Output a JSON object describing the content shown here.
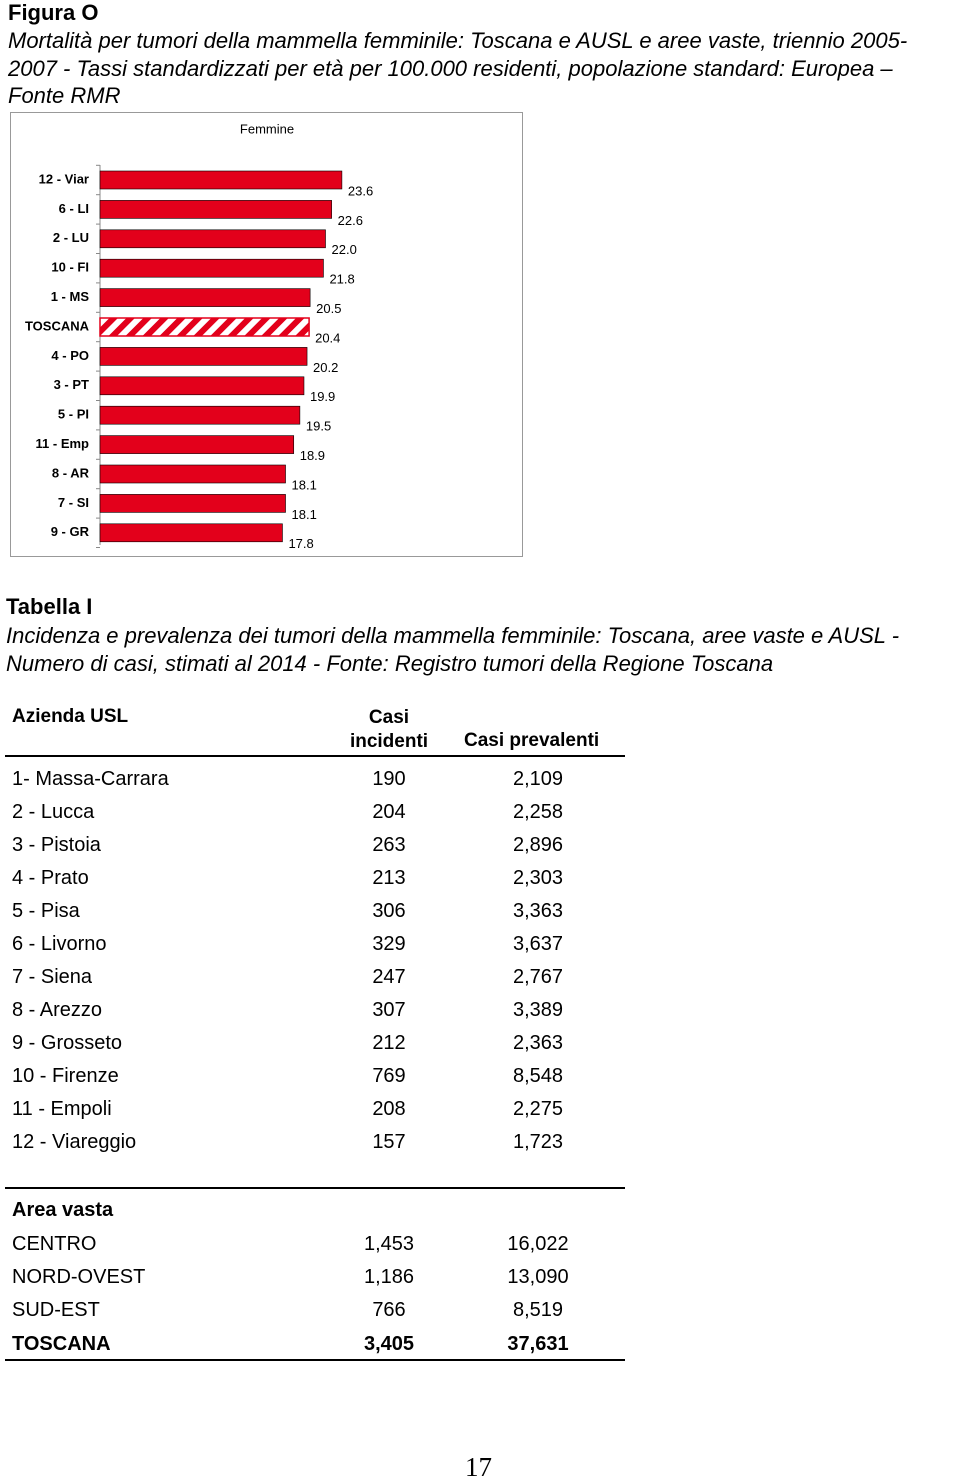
{
  "figure": {
    "label": "Figura O",
    "caption": "Mortalità per tumori della mammella femminile: Toscana e  AUSL e aree vaste, triennio 2005-2007 - Tassi standardizzati per età per 100.000 residenti, popolazione standard: Europea – Fonte RMR"
  },
  "chart_data": {
    "type": "bar",
    "orientation": "horizontal",
    "title": "Femmine",
    "categories": [
      "12 - Viar",
      "6 - LI",
      "2 - LU",
      "10 - FI",
      "1 - MS",
      "TOSCANA",
      "4 - PO",
      "3 - PT",
      "5 - PI",
      "11 - Emp",
      "8 - AR",
      "7 - SI",
      "9 - GR"
    ],
    "values": [
      23.6,
      22.6,
      22.0,
      21.8,
      20.5,
      20.4,
      20.2,
      19.9,
      19.5,
      18.9,
      18.1,
      18.1,
      17.8
    ],
    "value_labels": [
      "23.6",
      "22.6",
      "22.0",
      "21.8",
      "20.5",
      "20.4",
      "20.2",
      "19.9",
      "19.5",
      "18.9",
      "18.1",
      "18.1",
      "17.8"
    ],
    "color": "#e3001b",
    "bar_styles": [
      "solid",
      "solid",
      "solid",
      "solid",
      "solid",
      "hatched",
      "solid",
      "solid",
      "solid",
      "solid",
      "solid",
      "solid",
      "solid"
    ]
  },
  "table_section": {
    "label": "Tabella I",
    "caption": "Incidenza e prevalenza dei tumori della mammella femminile: Toscana, aree vaste e AUSL - Numero di casi,  stimati al 2014 - Fonte: Registro tumori della Regione Toscana",
    "header": [
      "Azienda USL",
      "Casi incidenti",
      "Casi prevalenti"
    ],
    "rows": [
      [
        "1- Massa-Carrara",
        "190",
        "2,109"
      ],
      [
        "2 - Lucca",
        "204",
        "2,258"
      ],
      [
        "3 - Pistoia",
        "263",
        "2,896"
      ],
      [
        "4 - Prato",
        "213",
        "2,303"
      ],
      [
        "5 - Pisa",
        "306",
        "3,363"
      ],
      [
        "6 - Livorno",
        "329",
        "3,637"
      ],
      [
        "7 - Siena",
        "247",
        "2,767"
      ],
      [
        "8 - Arezzo",
        "307",
        "3,389"
      ],
      [
        "9 - Grosseto",
        "212",
        "2,363"
      ],
      [
        "10 - Firenze",
        "769",
        "8,548"
      ],
      [
        "11 - Empoli",
        "208",
        "2,275"
      ],
      [
        "12 - Viareggio",
        "157",
        "1,723"
      ]
    ],
    "group_label": "Area vasta",
    "group_rows": [
      [
        "CENTRO",
        "1,453",
        "16,022"
      ],
      [
        "NORD-OVEST",
        "1,186",
        "13,090"
      ],
      [
        "SUD-EST",
        "766",
        "8,519"
      ]
    ],
    "total_row": [
      "TOSCANA",
      "3,405",
      "37,631"
    ]
  },
  "page_number": "17"
}
